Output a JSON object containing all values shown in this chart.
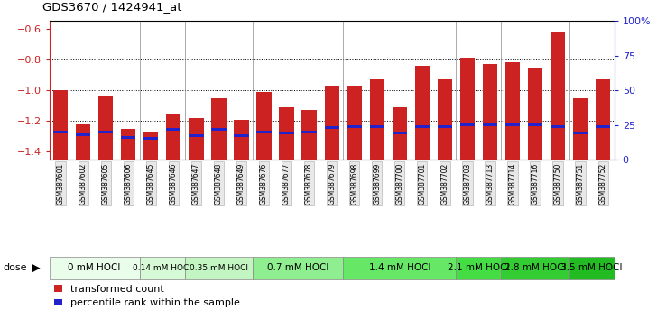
{
  "title": "GDS3670 / 1424941_at",
  "samples": [
    "GSM387601",
    "GSM387602",
    "GSM387605",
    "GSM387606",
    "GSM387645",
    "GSM387646",
    "GSM387647",
    "GSM387648",
    "GSM387649",
    "GSM387676",
    "GSM387677",
    "GSM387678",
    "GSM387679",
    "GSM387698",
    "GSM387699",
    "GSM387700",
    "GSM387701",
    "GSM387702",
    "GSM387703",
    "GSM387713",
    "GSM387714",
    "GSM387716",
    "GSM387750",
    "GSM387751",
    "GSM387752"
  ],
  "transformed_counts": [
    -1.0,
    -1.22,
    -1.04,
    -1.25,
    -1.27,
    -1.16,
    -1.18,
    -1.05,
    -1.19,
    -1.01,
    -1.11,
    -1.13,
    -0.97,
    -0.97,
    -0.93,
    -1.11,
    -0.84,
    -0.93,
    -0.79,
    -0.83,
    -0.82,
    -0.86,
    -0.62,
    -1.05,
    -0.93
  ],
  "percentile_ranks": [
    20,
    18,
    20,
    16,
    15,
    22,
    17,
    22,
    17,
    20,
    19,
    20,
    23,
    24,
    24,
    19,
    24,
    24,
    25,
    25,
    25,
    25,
    24,
    19,
    24
  ],
  "dose_groups": [
    {
      "label": "0 mM HOCl",
      "start": 0,
      "end": 4,
      "color": "#eafcea",
      "font_size": 7.5
    },
    {
      "label": "0.14 mM HOCl",
      "start": 4,
      "end": 6,
      "color": "#d6f9d6",
      "font_size": 6.5
    },
    {
      "label": "0.35 mM HOCl",
      "start": 6,
      "end": 9,
      "color": "#c2f5c2",
      "font_size": 6.5
    },
    {
      "label": "0.7 mM HOCl",
      "start": 9,
      "end": 13,
      "color": "#8fee8f",
      "font_size": 7.5
    },
    {
      "label": "1.4 mM HOCl",
      "start": 13,
      "end": 18,
      "color": "#66e866",
      "font_size": 7.5
    },
    {
      "label": "2.1 mM HOCl",
      "start": 18,
      "end": 20,
      "color": "#44dd44",
      "font_size": 7.5
    },
    {
      "label": "2.8 mM HOCl",
      "start": 20,
      "end": 23,
      "color": "#33cc33",
      "font_size": 7.5
    },
    {
      "label": "3.5 mM HOCl",
      "start": 23,
      "end": 25,
      "color": "#22bb22",
      "font_size": 7.5
    }
  ],
  "bar_color": "#cc2222",
  "percentile_color": "#2222cc",
  "ylim_left": [
    -1.45,
    -0.55
  ],
  "ylim_right": [
    0,
    100
  ],
  "yticks_left": [
    -1.4,
    -1.2,
    -1.0,
    -0.8,
    -0.6
  ],
  "yticks_right": [
    0,
    25,
    50,
    75,
    100
  ],
  "ytick_labels_right": [
    "0",
    "25",
    "50",
    "75",
    "100%"
  ],
  "grid_values": [
    -1.2,
    -1.0,
    -0.8
  ],
  "bar_width": 0.65,
  "background_color": "#ffffff",
  "plot_bg": "#ffffff"
}
